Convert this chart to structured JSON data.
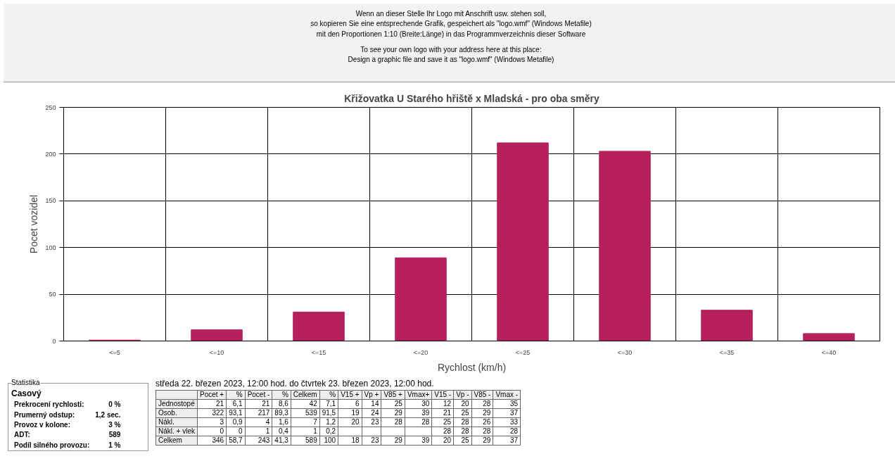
{
  "chart_data": {
    "type": "bar",
    "title": "Křižovatka U Starého hřiště x Mladská - pro oba směry",
    "xlabel": "Rychlost (km/h)",
    "ylabel": "Pocet vozidel",
    "categories": [
      "<=5",
      "<=10",
      "<=15",
      "<=20",
      "<=25",
      "<=30",
      "<=35",
      "<=40"
    ],
    "values": [
      1,
      12,
      31,
      89,
      212,
      203,
      33,
      8
    ],
    "color": "#b5205c",
    "ylim": [
      0,
      250
    ],
    "yticks": [
      0,
      50,
      100,
      150,
      200,
      250
    ],
    "grid": true,
    "annotations": [
      "Wenn an dieser Stelle Ihr Logo mit Anschrift usw. stehen soll,\nso kopieren Sie eine entsprechende Grafik, gespeichert als \"logo.wmf\" (Windows Metafile)\nmit den Proportionen 1:10 (Breite:Länge) in das Programmverzeichnis dieser Software",
      "To see your own logo with your address here at this place:\nDesign a graphic file and save it as \"logo.wmf\" (Windows Metafile)",
      "Statistika",
      "Casový",
      "Prekrocení rychlosti:\t0 %",
      "Prumerný odstup:\t1,2 sec.",
      "Provoz v kolone:\t3 %",
      "ADT:\t589",
      "Podíl silného provozu:\t1 %",
      "středa 22. březen 2023, 12:00 hod. do čtvrtek 23. březen 2023, 12:00 hod.",
      "\tPocet +\t%\tPocet -\t%\tCelkem\t%\tV15 +\tVp +\tV85 +\tVmax+\tV15 -\tVp -\tV85 -\tVmax -",
      "Jednostopé\t21\t6,1\t21\t8,6\t42\t7,1\t6\t14\t25\t30\t12\t20\t28\t35",
      "Osob.\t322\t93,1\t217\t89,3\t539\t91,5\t19\t24\t29\t39\t21\t25\t29\t37",
      "Nákl.\t3\t0,9\t4\t1,6\t7\t1,2\t20\t23\t28\t28\t25\t28\t26\t33",
      "Nákl. + vlek\t0\t0\t1\t0,4\t1\t0,2\t\t\t\t\t28\t28\t28\t28",
      "Celkem\t346\t58,7\t243\t41,3\t589\t100\t18\t23\t29\t39\t20\t25\t29\t37"
    ]
  }
}
